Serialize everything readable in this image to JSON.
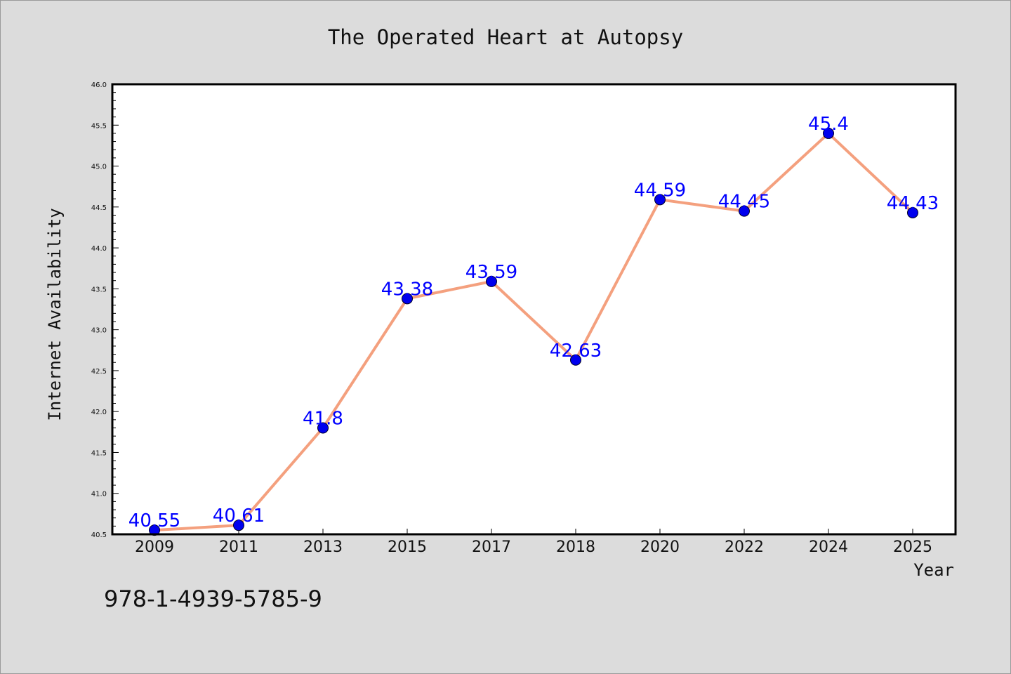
{
  "chart_data": {
    "type": "line",
    "title": "The Operated Heart at Autopsy",
    "xlabel": "Year",
    "ylabel": "Internet Availability",
    "categories": [
      "2009",
      "2011",
      "2013",
      "2015",
      "2017",
      "2018",
      "2020",
      "2022",
      "2024",
      "2025"
    ],
    "values": [
      40.55,
      40.61,
      41.8,
      43.38,
      43.59,
      42.63,
      44.59,
      44.45,
      45.4,
      44.43
    ],
    "data_labels": [
      "40.55",
      "40.61",
      "41.8",
      "43.38",
      "43.59",
      "42.63",
      "44.59",
      "44.45",
      "45.4",
      "44.43"
    ],
    "ylim": [
      40.5,
      46.0
    ],
    "yticks": [
      "40.5",
      "41.0",
      "41.5",
      "42.0",
      "42.5",
      "43.0",
      "43.5",
      "44.0",
      "44.5",
      "45.0",
      "45.5",
      "46.0"
    ],
    "grid": false,
    "legend": "none",
    "colors": {
      "line": "#f4a07e",
      "marker": "#0000ee",
      "label": "#0000ff",
      "background": "#dcdcdc",
      "plot_background": "#ffffff"
    }
  },
  "footer_text": "978-1-4939-5785-9"
}
